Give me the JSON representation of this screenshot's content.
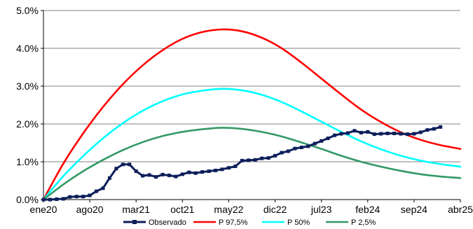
{
  "chart_data": {
    "type": "line",
    "x_unit": "month",
    "x_ticks": [
      {
        "label": "ene20",
        "date": "2020-01"
      },
      {
        "label": "ago20",
        "date": "2020-08"
      },
      {
        "label": "mar21",
        "date": "2021-03"
      },
      {
        "label": "oct21",
        "date": "2021-10"
      },
      {
        "label": "may22",
        "date": "2022-05"
      },
      {
        "label": "dic22",
        "date": "2022-12"
      },
      {
        "label": "jul23",
        "date": "2023-07"
      },
      {
        "label": "feb24",
        "date": "2024-02"
      },
      {
        "label": "sep24",
        "date": "2024-09"
      },
      {
        "label": "abr25",
        "date": "2025-04"
      }
    ],
    "xlim": [
      "2020-01",
      "2025-04"
    ],
    "y_ticks": [
      {
        "label": "0.0%",
        "value": 0
      },
      {
        "label": "1.0%",
        "value": 1
      },
      {
        "label": "2.0%",
        "value": 2
      },
      {
        "label": "3.0%",
        "value": 3
      },
      {
        "label": "4.0%",
        "value": 4
      },
      {
        "label": "5.0%",
        "value": 5
      }
    ],
    "ylim": [
      0,
      5
    ],
    "grid": {
      "horizontal": true,
      "vertical": false
    },
    "legend_position": "bottom",
    "series": [
      {
        "name": "Observado",
        "color": "#0d1e5a",
        "marker": "square",
        "points": [
          [
            "2020-01",
            0.0
          ],
          [
            "2020-02",
            0.0
          ],
          [
            "2020-03",
            0.01
          ],
          [
            "2020-04",
            0.02
          ],
          [
            "2020-05",
            0.07
          ],
          [
            "2020-06",
            0.08
          ],
          [
            "2020-07",
            0.08
          ],
          [
            "2020-08",
            0.11
          ],
          [
            "2020-09",
            0.22
          ],
          [
            "2020-10",
            0.3
          ],
          [
            "2020-11",
            0.57
          ],
          [
            "2020-12",
            0.82
          ],
          [
            "2021-01",
            0.93
          ],
          [
            "2021-02",
            0.93
          ],
          [
            "2021-03",
            0.75
          ],
          [
            "2021-04",
            0.63
          ],
          [
            "2021-05",
            0.65
          ],
          [
            "2021-06",
            0.6
          ],
          [
            "2021-07",
            0.66
          ],
          [
            "2021-08",
            0.64
          ],
          [
            "2021-09",
            0.61
          ],
          [
            "2021-10",
            0.67
          ],
          [
            "2021-11",
            0.72
          ],
          [
            "2021-12",
            0.7
          ],
          [
            "2022-01",
            0.73
          ],
          [
            "2022-02",
            0.75
          ],
          [
            "2022-03",
            0.77
          ],
          [
            "2022-04",
            0.8
          ],
          [
            "2022-05",
            0.84
          ],
          [
            "2022-06",
            0.88
          ],
          [
            "2022-07",
            1.03
          ],
          [
            "2022-08",
            1.04
          ],
          [
            "2022-09",
            1.05
          ],
          [
            "2022-10",
            1.09
          ],
          [
            "2022-11",
            1.1
          ],
          [
            "2022-12",
            1.16
          ],
          [
            "2023-01",
            1.24
          ],
          [
            "2023-02",
            1.28
          ],
          [
            "2023-03",
            1.35
          ],
          [
            "2023-04",
            1.38
          ],
          [
            "2023-05",
            1.41
          ],
          [
            "2023-06",
            1.48
          ],
          [
            "2023-07",
            1.55
          ],
          [
            "2023-08",
            1.62
          ],
          [
            "2023-09",
            1.7
          ],
          [
            "2023-10",
            1.74
          ],
          [
            "2023-11",
            1.76
          ],
          [
            "2023-12",
            1.82
          ],
          [
            "2024-01",
            1.77
          ],
          [
            "2024-02",
            1.79
          ],
          [
            "2024-03",
            1.73
          ],
          [
            "2024-04",
            1.74
          ],
          [
            "2024-05",
            1.75
          ],
          [
            "2024-06",
            1.75
          ],
          [
            "2024-07",
            1.74
          ],
          [
            "2024-08",
            1.73
          ],
          [
            "2024-09",
            1.74
          ],
          [
            "2024-10",
            1.78
          ],
          [
            "2024-11",
            1.84
          ],
          [
            "2024-12",
            1.87
          ],
          [
            "2025-01",
            1.92
          ]
        ]
      },
      {
        "name": "P 97,5%",
        "color": "#ff0000",
        "marker": "none",
        "points": [
          [
            "2020-01",
            0.0
          ],
          [
            "2020-04",
            0.95
          ],
          [
            "2020-07",
            1.75
          ],
          [
            "2020-10",
            2.45
          ],
          [
            "2021-01",
            3.05
          ],
          [
            "2021-04",
            3.55
          ],
          [
            "2021-07",
            3.95
          ],
          [
            "2021-10",
            4.25
          ],
          [
            "2022-01",
            4.43
          ],
          [
            "2022-04",
            4.5
          ],
          [
            "2022-07",
            4.45
          ],
          [
            "2022-10",
            4.28
          ],
          [
            "2023-01",
            4.0
          ],
          [
            "2023-04",
            3.62
          ],
          [
            "2023-07",
            3.2
          ],
          [
            "2023-10",
            2.78
          ],
          [
            "2024-01",
            2.38
          ],
          [
            "2024-04",
            2.05
          ],
          [
            "2024-07",
            1.78
          ],
          [
            "2024-10",
            1.58
          ],
          [
            "2025-01",
            1.44
          ],
          [
            "2025-04",
            1.34
          ]
        ]
      },
      {
        "name": "P 50%",
        "color": "#00ffff",
        "marker": "none",
        "points": [
          [
            "2020-01",
            0.0
          ],
          [
            "2020-04",
            0.62
          ],
          [
            "2020-07",
            1.15
          ],
          [
            "2020-10",
            1.62
          ],
          [
            "2021-01",
            2.02
          ],
          [
            "2021-04",
            2.35
          ],
          [
            "2021-07",
            2.6
          ],
          [
            "2021-10",
            2.78
          ],
          [
            "2022-01",
            2.88
          ],
          [
            "2022-04",
            2.93
          ],
          [
            "2022-07",
            2.89
          ],
          [
            "2022-10",
            2.77
          ],
          [
            "2023-01",
            2.58
          ],
          [
            "2023-04",
            2.33
          ],
          [
            "2023-07",
            2.06
          ],
          [
            "2023-10",
            1.79
          ],
          [
            "2024-01",
            1.54
          ],
          [
            "2024-04",
            1.33
          ],
          [
            "2024-07",
            1.16
          ],
          [
            "2024-10",
            1.03
          ],
          [
            "2025-01",
            0.94
          ],
          [
            "2025-04",
            0.87
          ]
        ]
      },
      {
        "name": "P 2,5%",
        "color": "#339966",
        "marker": "none",
        "points": [
          [
            "2020-01",
            0.0
          ],
          [
            "2020-04",
            0.4
          ],
          [
            "2020-07",
            0.75
          ],
          [
            "2020-10",
            1.05
          ],
          [
            "2021-01",
            1.31
          ],
          [
            "2021-04",
            1.52
          ],
          [
            "2021-07",
            1.68
          ],
          [
            "2021-10",
            1.79
          ],
          [
            "2022-01",
            1.86
          ],
          [
            "2022-04",
            1.9
          ],
          [
            "2022-07",
            1.87
          ],
          [
            "2022-10",
            1.79
          ],
          [
            "2023-01",
            1.67
          ],
          [
            "2023-04",
            1.51
          ],
          [
            "2023-07",
            1.34
          ],
          [
            "2023-10",
            1.16
          ],
          [
            "2024-01",
            1.0
          ],
          [
            "2024-04",
            0.87
          ],
          [
            "2024-07",
            0.76
          ],
          [
            "2024-10",
            0.67
          ],
          [
            "2025-01",
            0.61
          ],
          [
            "2025-04",
            0.57
          ]
        ]
      }
    ]
  }
}
